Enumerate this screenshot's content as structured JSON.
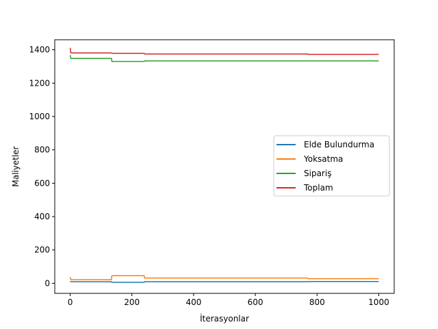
{
  "chart_data": {
    "type": "line",
    "title": "",
    "xlabel": "İterasyonlar",
    "ylabel": "Maliyetler",
    "xlim": [
      -50,
      1050
    ],
    "ylim": [
      -60,
      1460
    ],
    "xticks": [
      0,
      200,
      400,
      600,
      800,
      1000
    ],
    "yticks": [
      0,
      200,
      400,
      600,
      800,
      1000,
      1200,
      1400
    ],
    "grid": false,
    "legend_position": "center right",
    "series": [
      {
        "name": "Elde Bulundurma",
        "color": "#1f77b4",
        "points": [
          [
            0,
            8
          ],
          [
            1,
            10
          ],
          [
            134,
            10
          ],
          [
            135,
            6
          ],
          [
            240,
            6
          ],
          [
            241,
            10
          ],
          [
            770,
            10
          ],
          [
            771,
            11
          ],
          [
            1000,
            11
          ]
        ]
      },
      {
        "name": "Yoksatma",
        "color": "#ff7f0e",
        "points": [
          [
            0,
            38
          ],
          [
            2,
            22
          ],
          [
            134,
            22
          ],
          [
            135,
            46
          ],
          [
            240,
            46
          ],
          [
            241,
            32
          ],
          [
            770,
            32
          ],
          [
            771,
            28
          ],
          [
            1000,
            28
          ]
        ]
      },
      {
        "name": "Sipariş",
        "color": "#2ca02c",
        "points": [
          [
            0,
            1368
          ],
          [
            2,
            1348
          ],
          [
            134,
            1348
          ],
          [
            135,
            1330
          ],
          [
            240,
            1330
          ],
          [
            241,
            1333
          ],
          [
            1000,
            1333
          ]
        ]
      },
      {
        "name": "Toplam",
        "color": "#d62728",
        "points": [
          [
            0,
            1412
          ],
          [
            2,
            1381
          ],
          [
            134,
            1381
          ],
          [
            135,
            1379
          ],
          [
            240,
            1379
          ],
          [
            241,
            1375
          ],
          [
            770,
            1375
          ],
          [
            771,
            1372
          ],
          [
            1000,
            1372
          ]
        ]
      }
    ]
  }
}
